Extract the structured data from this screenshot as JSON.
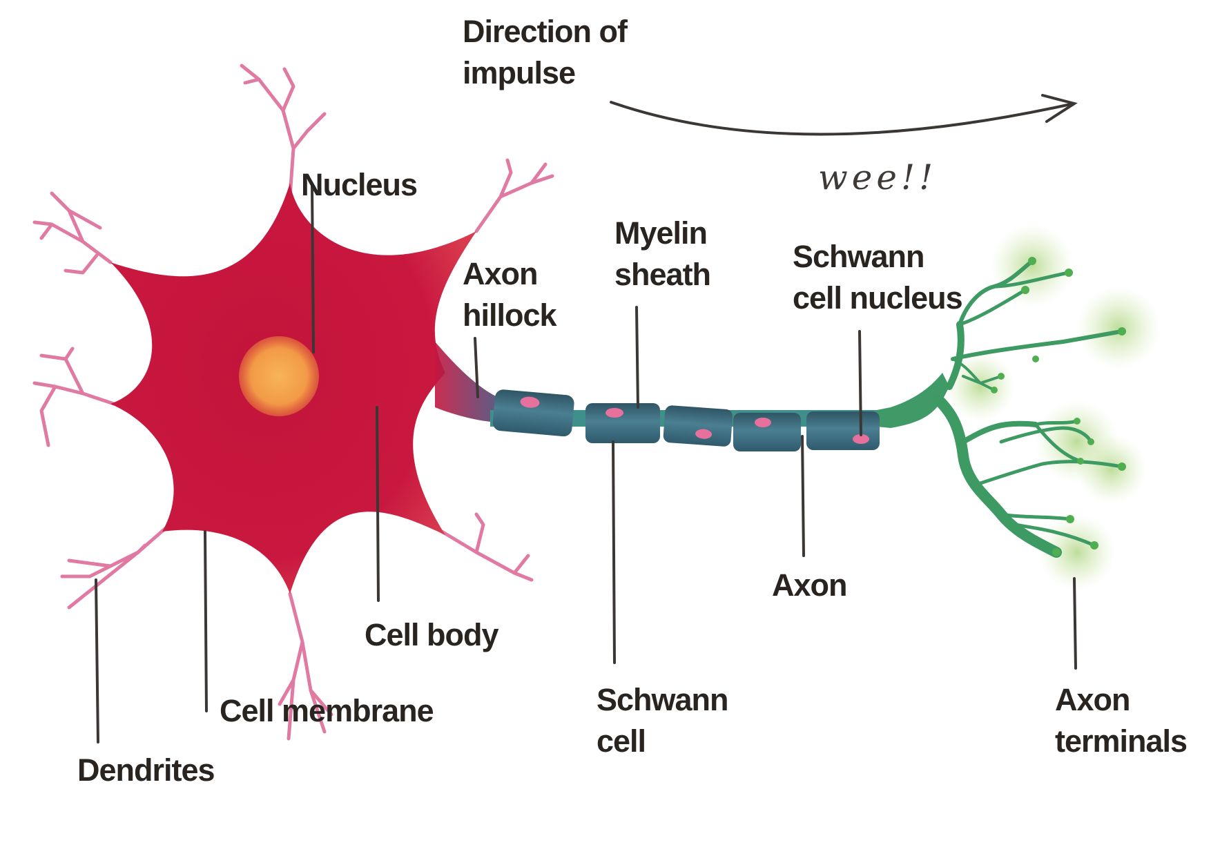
{
  "diagram": {
    "direction_label": [
      "Direction of",
      "impulse"
    ],
    "wee_note": "wee!!",
    "labels": {
      "nucleus": [
        "Nucleus"
      ],
      "axon_hillock": [
        "Axon",
        "hillock"
      ],
      "myelin_sheath": [
        "Myelin",
        "sheath"
      ],
      "schwann_cell_nucleus": [
        "Schwann",
        "cell nucleus"
      ],
      "axon": [
        "Axon"
      ],
      "cell_body": [
        "Cell body"
      ],
      "schwann_cell": [
        "Schwann",
        "cell"
      ],
      "cell_membrane": [
        "Cell membrane"
      ],
      "dendrites": [
        "Dendrites"
      ],
      "axon_terminals": [
        "Axon",
        "terminals"
      ]
    }
  },
  "colors": {
    "cell_body": "#c9163f",
    "nucleus": "#f5a34a",
    "dendrites": "#e07aa2",
    "myelin": "#3e6f82",
    "schwann_nucleus": "#e8709c",
    "axon_terminals": "#3e9a63",
    "terminal_glow": "#b9d98a",
    "label_text": "#2a2420",
    "leader_line": "#3a3734"
  }
}
